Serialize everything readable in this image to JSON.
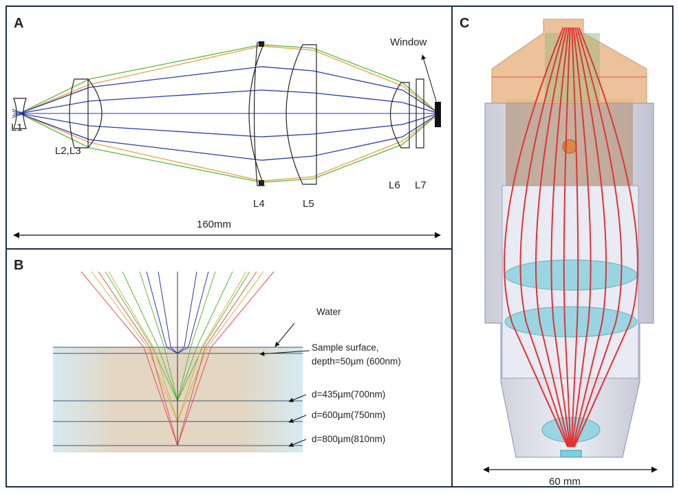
{
  "panel_a": {
    "label": "A",
    "lenses": [
      "L1",
      "L2,L3",
      "L4",
      "L5",
      "L6",
      "L7"
    ],
    "window": "Window",
    "length": "160mm"
  },
  "panel_b": {
    "label": "B",
    "medium": "Water",
    "surface": [
      "Sample surface,",
      "depth=50µm (600nm)"
    ],
    "depths": [
      "d=435µm(700nm)",
      "d=600µm(750nm)",
      "d=800µm(810nm)"
    ]
  },
  "panel_c": {
    "label": "C",
    "width": "60 mm"
  }
}
